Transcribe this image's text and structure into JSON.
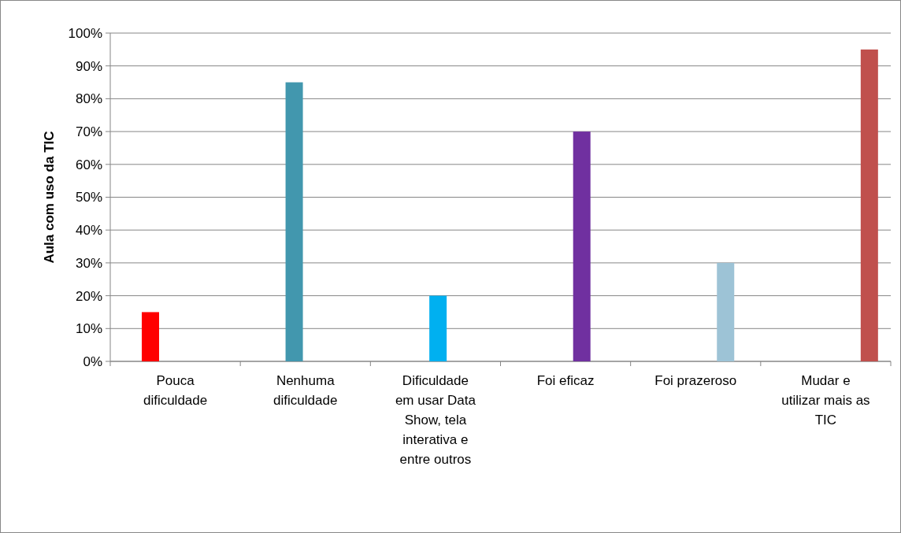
{
  "chart_data": {
    "type": "bar",
    "ylabel": "Aula com uso da TIC",
    "categories": [
      "Pouca\ndificuldade",
      "Nenhuma\ndificuldade",
      "Dificuldade\nem usar Data\nShow, tela\ninterativa e\nentre outros",
      "Foi eficaz",
      "Foi prazeroso",
      "Mudar e\nutilizar mais as\nTIC"
    ],
    "series": [
      {
        "color": "#ff0000",
        "values": [
          15,
          null,
          null,
          null,
          null,
          null
        ]
      },
      {
        "color": "#4297ae",
        "values": [
          null,
          85,
          null,
          null,
          null,
          null
        ]
      },
      {
        "color": "#00b0f0",
        "values": [
          null,
          null,
          20,
          null,
          null,
          null
        ]
      },
      {
        "color": "#7030a0",
        "values": [
          null,
          null,
          null,
          70,
          null,
          null
        ]
      },
      {
        "color": "#9dc3d6",
        "values": [
          null,
          null,
          null,
          null,
          30,
          null
        ]
      },
      {
        "color": "#c0504d",
        "values": [
          null,
          null,
          null,
          null,
          null,
          95
        ]
      }
    ],
    "ylim": [
      0,
      100
    ],
    "yticks": [
      {
        "value": 0,
        "label": "0%"
      },
      {
        "value": 10,
        "label": "10%"
      },
      {
        "value": 20,
        "label": "20%"
      },
      {
        "value": 30,
        "label": "30%"
      },
      {
        "value": 40,
        "label": "40%"
      },
      {
        "value": 50,
        "label": "50%"
      },
      {
        "value": 60,
        "label": "60%"
      },
      {
        "value": 70,
        "label": "70%"
      },
      {
        "value": 80,
        "label": "80%"
      },
      {
        "value": 90,
        "label": "90%"
      },
      {
        "value": 100,
        "label": "100%"
      }
    ],
    "grid": "y"
  }
}
